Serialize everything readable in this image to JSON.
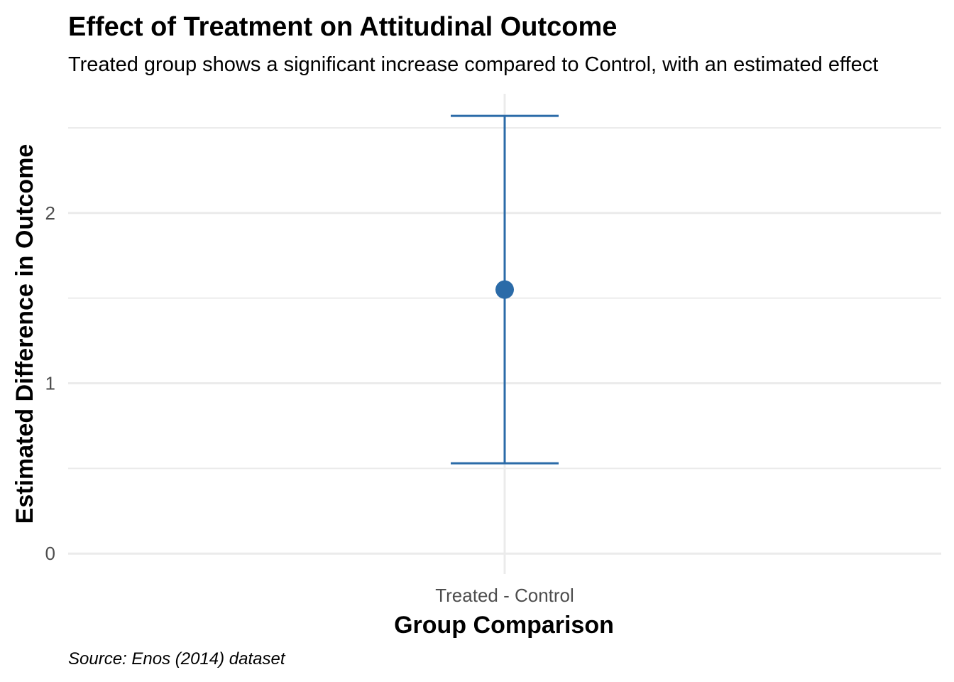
{
  "chart_data": {
    "type": "errorbar",
    "title": "Effect of Treatment on Attitudinal Outcome",
    "subtitle": "Treated group shows a significant increase compared to Control, with an estimated effect",
    "xlabel": "Group Comparison",
    "ylabel": "Estimated Difference in Outcome",
    "caption": "Source: Enos (2014) dataset",
    "categories": [
      "Treated - Control"
    ],
    "estimate": [
      1.55
    ],
    "ci_low": [
      0.53
    ],
    "ci_high": [
      2.57
    ],
    "ylim": [
      -0.12,
      2.7
    ],
    "y_ticks": [
      0,
      1,
      2
    ],
    "y_tick_labels": [
      "0",
      "1",
      "2"
    ],
    "y_minor_ticks": [
      0.5,
      1.5,
      2.5
    ],
    "grid": true,
    "legend": "none",
    "colors": {
      "series": "#2b6ba8",
      "grid": "#ebebeb",
      "tick_text": "#4d4d4d"
    }
  }
}
